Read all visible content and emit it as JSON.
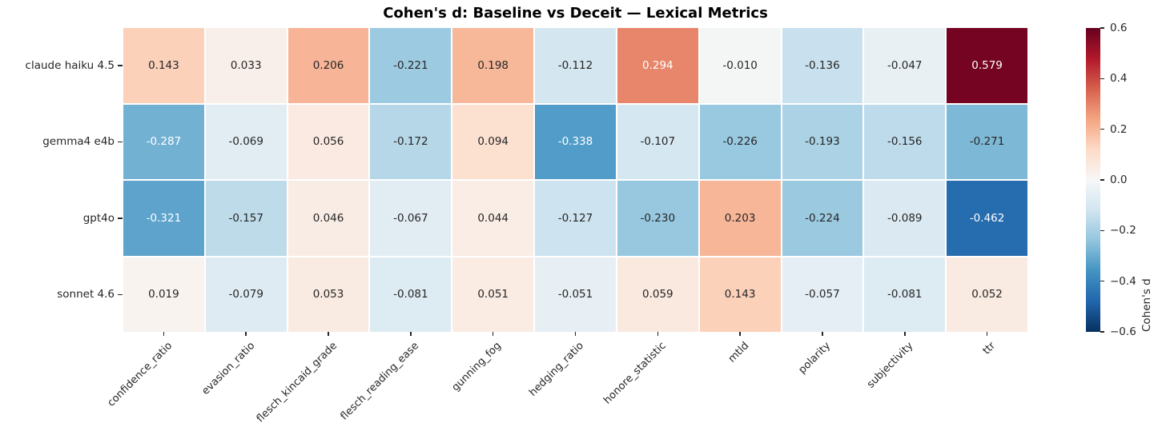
{
  "chart_data": {
    "type": "heatmap",
    "title": "Cohen's d: Baseline vs Deceit — Lexical Metrics",
    "rows": [
      "claude haiku 4.5",
      "gemma4 e4b",
      "gpt4o",
      "sonnet 4.6"
    ],
    "columns": [
      "confidence_ratio",
      "evasion_ratio",
      "flesch_kincaid_grade",
      "flesch_reading_ease",
      "gunning_fog",
      "hedging_ratio",
      "honore_statistic",
      "mtld",
      "polarity",
      "subjectivity",
      "ttr"
    ],
    "values": [
      [
        0.143,
        0.033,
        0.206,
        -0.221,
        0.198,
        -0.112,
        0.294,
        -0.01,
        -0.136,
        -0.047,
        0.579
      ],
      [
        -0.287,
        -0.069,
        0.056,
        -0.172,
        0.094,
        -0.338,
        -0.107,
        -0.226,
        -0.193,
        -0.156,
        -0.271
      ],
      [
        -0.321,
        -0.157,
        0.046,
        -0.067,
        0.044,
        -0.127,
        -0.23,
        0.203,
        -0.224,
        -0.089,
        -0.462
      ],
      [
        0.019,
        -0.079,
        0.053,
        -0.081,
        0.051,
        -0.051,
        0.059,
        0.143,
        -0.057,
        -0.081,
        0.052
      ]
    ],
    "value_decimals": 3,
    "grid": false,
    "colormap": {
      "name": "RdBu_r",
      "vmin": -0.6,
      "vmax": 0.6,
      "anchors_low_to_high": [
        "#053061",
        "#2166ac",
        "#4393c3",
        "#92c5de",
        "#d1e5f0",
        "#f7f7f7",
        "#fddbc7",
        "#f4a582",
        "#d6604d",
        "#b2182b",
        "#67001f"
      ]
    },
    "colorbar": {
      "label": "Cohen's d",
      "tick_labels": [
        "0.6",
        "0.4",
        "0.2",
        "0.0",
        "−0.2",
        "−0.4",
        "−0.6"
      ],
      "tick_values": [
        0.6,
        0.4,
        0.2,
        0.0,
        -0.2,
        -0.4,
        -0.6
      ],
      "position": "right"
    },
    "annotation_text_colors": {
      "dark": "#262626",
      "light": "#ffffff"
    }
  }
}
